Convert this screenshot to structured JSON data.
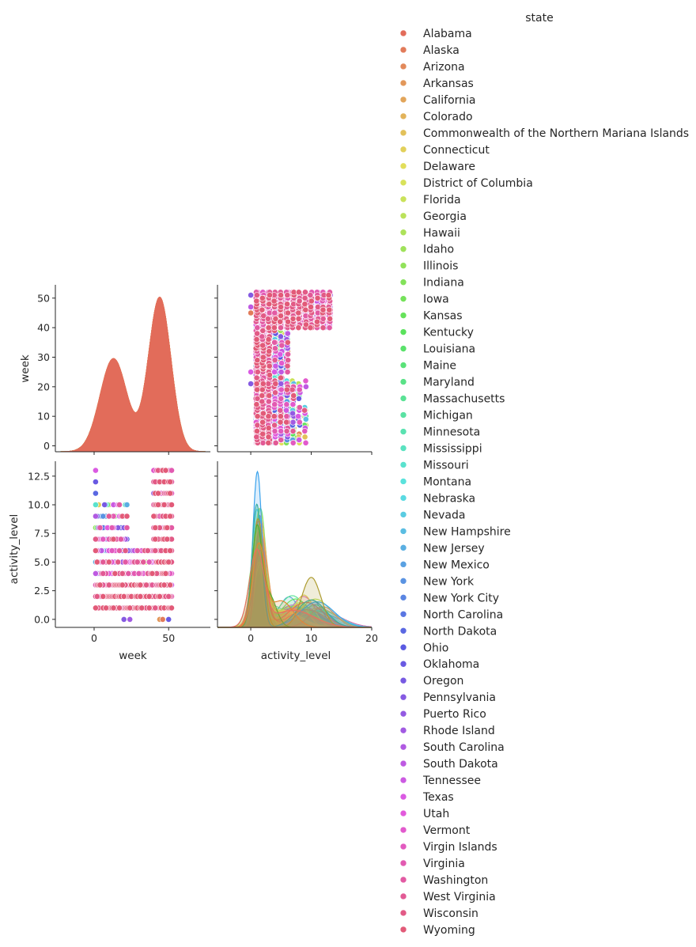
{
  "chart_data": {
    "type": "pairplot",
    "variables": [
      "week",
      "activity_level"
    ],
    "legend_title": "state",
    "legend_placement": "right",
    "grid": false,
    "hue_levels": [
      "Alabama",
      "Alaska",
      "Arizona",
      "Arkansas",
      "California",
      "Colorado",
      "Commonwealth of the Northern Mariana Islands",
      "Connecticut",
      "Delaware",
      "District of Columbia",
      "Florida",
      "Georgia",
      "Hawaii",
      "Idaho",
      "Illinois",
      "Indiana",
      "Iowa",
      "Kansas",
      "Kentucky",
      "Louisiana",
      "Maine",
      "Maryland",
      "Massachusetts",
      "Michigan",
      "Minnesota",
      "Mississippi",
      "Missouri",
      "Montana",
      "Nebraska",
      "Nevada",
      "New Hampshire",
      "New Jersey",
      "New Mexico",
      "New York",
      "New York City",
      "North Carolina",
      "North Dakota",
      "Ohio",
      "Oklahoma",
      "Oregon",
      "Pennsylvania",
      "Puerto Rico",
      "Rhode Island",
      "South Carolina",
      "South Dakota",
      "Tennessee",
      "Texas",
      "Utah",
      "Vermont",
      "Virgin Islands",
      "Virginia",
      "Washington",
      "West Virginia",
      "Wisconsin",
      "Wyoming"
    ],
    "axes": {
      "week": {
        "label": "week",
        "range": [
          -26,
          78
        ],
        "ticks": [
          0,
          50
        ],
        "tick_labels": [
          "0",
          "50"
        ]
      },
      "week_y": {
        "label": "week",
        "range": [
          -2,
          54.5
        ],
        "ticks": [
          0,
          10,
          20,
          30,
          40,
          50
        ],
        "tick_labels": [
          "0",
          "10",
          "20",
          "30",
          "40",
          "50"
        ]
      },
      "activity_level": {
        "label": "activity_level",
        "range": [
          -5.5,
          20
        ],
        "ticks": [
          0,
          10,
          20
        ],
        "tick_labels": [
          "0",
          "10",
          "20"
        ]
      },
      "activity_level_y": {
        "label": "activity_level",
        "range": [
          -0.7,
          13.8
        ],
        "ticks": [
          0,
          2.5,
          5,
          7.5,
          10,
          12.5
        ],
        "tick_labels": [
          "0.0",
          "2.5",
          "5.0",
          "7.5",
          "10.0",
          "12.5"
        ]
      }
    },
    "diag_week_kde": {
      "x_range": [
        -26,
        78
      ],
      "peaks": [
        {
          "mean": 13,
          "sd": 9,
          "w": 0.42
        },
        {
          "mean": 44,
          "sd": 7.5,
          "w": 0.58
        }
      ]
    },
    "diag_activity_kde": [
      {
        "state_index": 40,
        "color": "#3ba3ec",
        "peak": 12.9,
        "components": [
          {
            "mean": 1.1,
            "sd": 0.75,
            "w": 0.62
          },
          {
            "mean": 11,
            "sd": 2.8,
            "w": 0.38
          }
        ]
      },
      {
        "state_index": 25,
        "color": "#36ada4",
        "peak": 10.2,
        "components": [
          {
            "mean": 1.0,
            "sd": 0.8,
            "w": 0.6
          },
          {
            "mean": 10,
            "sd": 2.4,
            "w": 0.4
          }
        ]
      },
      {
        "state_index": 12,
        "color": "#ad9c31",
        "peak": 9.0,
        "components": [
          {
            "mean": 1.2,
            "sd": 0.9,
            "w": 0.55
          },
          {
            "mean": 10,
            "sd": 1.6,
            "w": 0.45
          }
        ]
      },
      {
        "state_index": 20,
        "color": "#4fb031",
        "peak": 8.5,
        "components": [
          {
            "mean": 1.0,
            "sd": 0.8,
            "w": 0.66
          },
          {
            "mean": 3,
            "sd": 1.2,
            "w": 0.34
          }
        ]
      },
      {
        "state_index": 4,
        "color": "#e18a32",
        "peak": 7.0,
        "components": [
          {
            "mean": 1.3,
            "sd": 1.0,
            "w": 0.6
          },
          {
            "mean": 5,
            "sd": 2.0,
            "w": 0.4
          }
        ]
      },
      {
        "state_index": 0,
        "color": "#ea6f61",
        "peak": 6.5,
        "components": [
          {
            "mean": 1.0,
            "sd": 1.2,
            "w": 0.6
          },
          {
            "mean": 7,
            "sd": 3.5,
            "w": 0.4
          }
        ]
      }
    ],
    "scatter_week_vs_activity": {
      "description_values": "activity_level (x) vs week (y)",
      "x": "activity_level",
      "y": "week"
    },
    "scatter_activity_vs_week": {
      "x": "week",
      "y": "activity_level"
    }
  }
}
